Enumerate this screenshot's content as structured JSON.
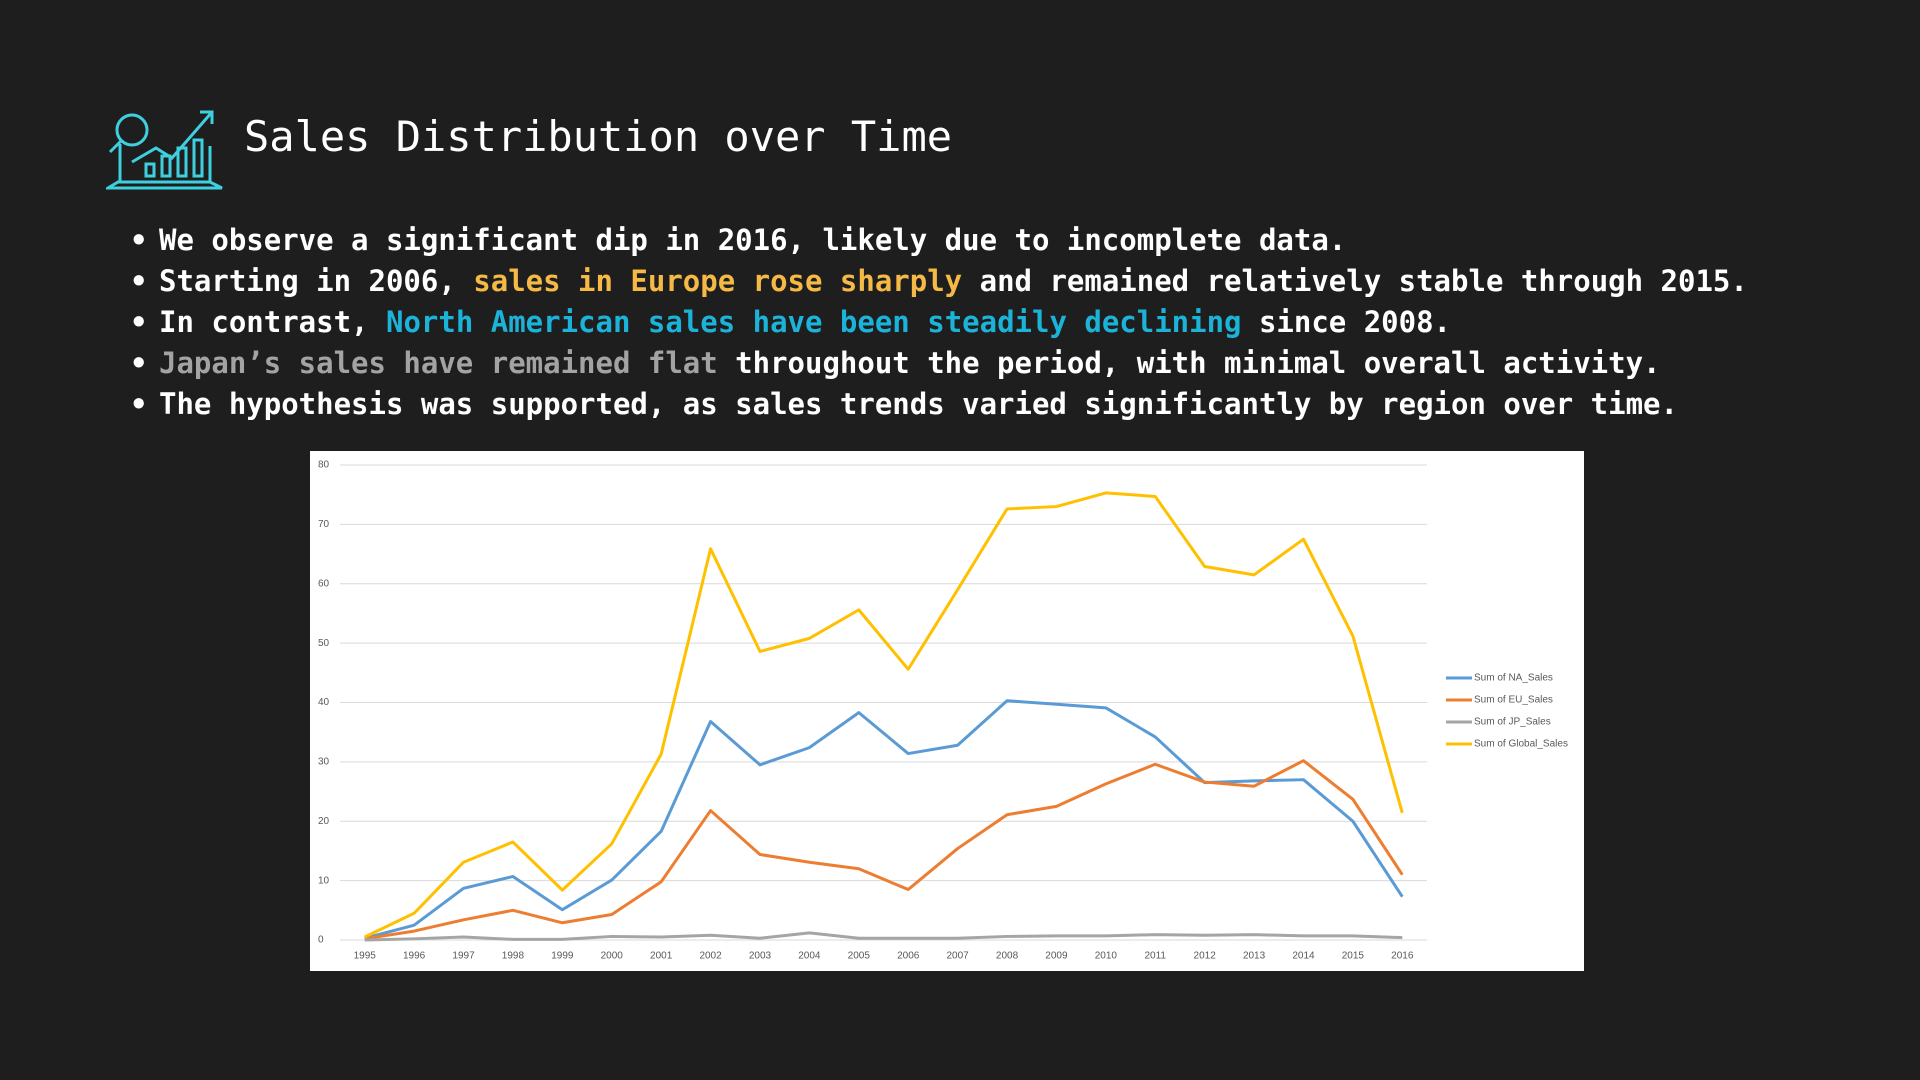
{
  "header": {
    "title": "Sales Distribution over Time"
  },
  "bullets": [
    {
      "parts": [
        {
          "text": "We observe a significant dip in 2016, likely due to incomplete data.",
          "color": "#ffffff"
        }
      ]
    },
    {
      "parts": [
        {
          "text": "Starting in 2006, ",
          "color": "#ffffff"
        },
        {
          "text": "sales in Europe rose sharply",
          "color": "#f5b946"
        },
        {
          "text": " and remained relatively stable through 2015.",
          "color": "#ffffff"
        }
      ]
    },
    {
      "parts": [
        {
          "text": "In contrast, ",
          "color": "#ffffff"
        },
        {
          "text": "North American sales have been steadily declining",
          "color": "#1cb3d9"
        },
        {
          "text": " since 2008.",
          "color": "#ffffff"
        }
      ]
    },
    {
      "parts": [
        {
          "text": "Japan’s sales have remained flat",
          "color": "#a3a3a3"
        },
        {
          "text": " throughout the period, with minimal overall activity.",
          "color": "#ffffff"
        }
      ]
    },
    {
      "parts": [
        {
          "text": "The hypothesis was supported, as sales trends varied significantly by region over time.",
          "color": "#ffffff"
        }
      ]
    }
  ],
  "chart_data": {
    "type": "line",
    "categories": [
      "1995",
      "1996",
      "1997",
      "1998",
      "1999",
      "2000",
      "2001",
      "2002",
      "2003",
      "2004",
      "2005",
      "2006",
      "2007",
      "2008",
      "2009",
      "2010",
      "2011",
      "2012",
      "2013",
      "2014",
      "2015",
      "2016"
    ],
    "series": [
      {
        "name": "Sum of NA_Sales",
        "color": "#5b9bd5",
        "values": [
          0.3,
          2.5,
          8.7,
          10.7,
          5.1,
          10.1,
          18.3,
          36.8,
          29.5,
          32.4,
          38.3,
          31.4,
          32.8,
          40.3,
          39.7,
          39.1,
          34.2,
          26.5,
          26.8,
          27.0,
          20.0,
          7.3
        ]
      },
      {
        "name": "Sum of EU_Sales",
        "color": "#ed7d31",
        "values": [
          0.2,
          1.5,
          3.4,
          5.0,
          2.9,
          4.3,
          9.8,
          21.8,
          14.4,
          13.1,
          12.0,
          8.5,
          15.4,
          21.1,
          22.5,
          26.3,
          29.6,
          26.6,
          25.9,
          30.2,
          23.7,
          11.0
        ]
      },
      {
        "name": "Sum of JP_Sales",
        "color": "#a5a5a5",
        "values": [
          0.0,
          0.2,
          0.5,
          0.1,
          0.1,
          0.6,
          0.5,
          0.8,
          0.3,
          1.2,
          0.3,
          0.3,
          0.3,
          0.6,
          0.7,
          0.7,
          0.9,
          0.8,
          0.9,
          0.7,
          0.7,
          0.4
        ]
      },
      {
        "name": "Sum of Global_Sales",
        "color": "#ffc000",
        "values": [
          0.5,
          4.5,
          13.1,
          16.5,
          8.4,
          16.2,
          31.3,
          65.9,
          48.6,
          50.8,
          55.6,
          45.6,
          59.0,
          72.6,
          73.0,
          75.3,
          74.7,
          62.9,
          61.5,
          67.5,
          51.2,
          21.4
        ]
      }
    ],
    "ylim": [
      0,
      80
    ],
    "yticks": [
      0,
      10,
      20,
      30,
      40,
      50,
      60,
      70,
      80
    ],
    "grid": true,
    "legend": "right"
  }
}
